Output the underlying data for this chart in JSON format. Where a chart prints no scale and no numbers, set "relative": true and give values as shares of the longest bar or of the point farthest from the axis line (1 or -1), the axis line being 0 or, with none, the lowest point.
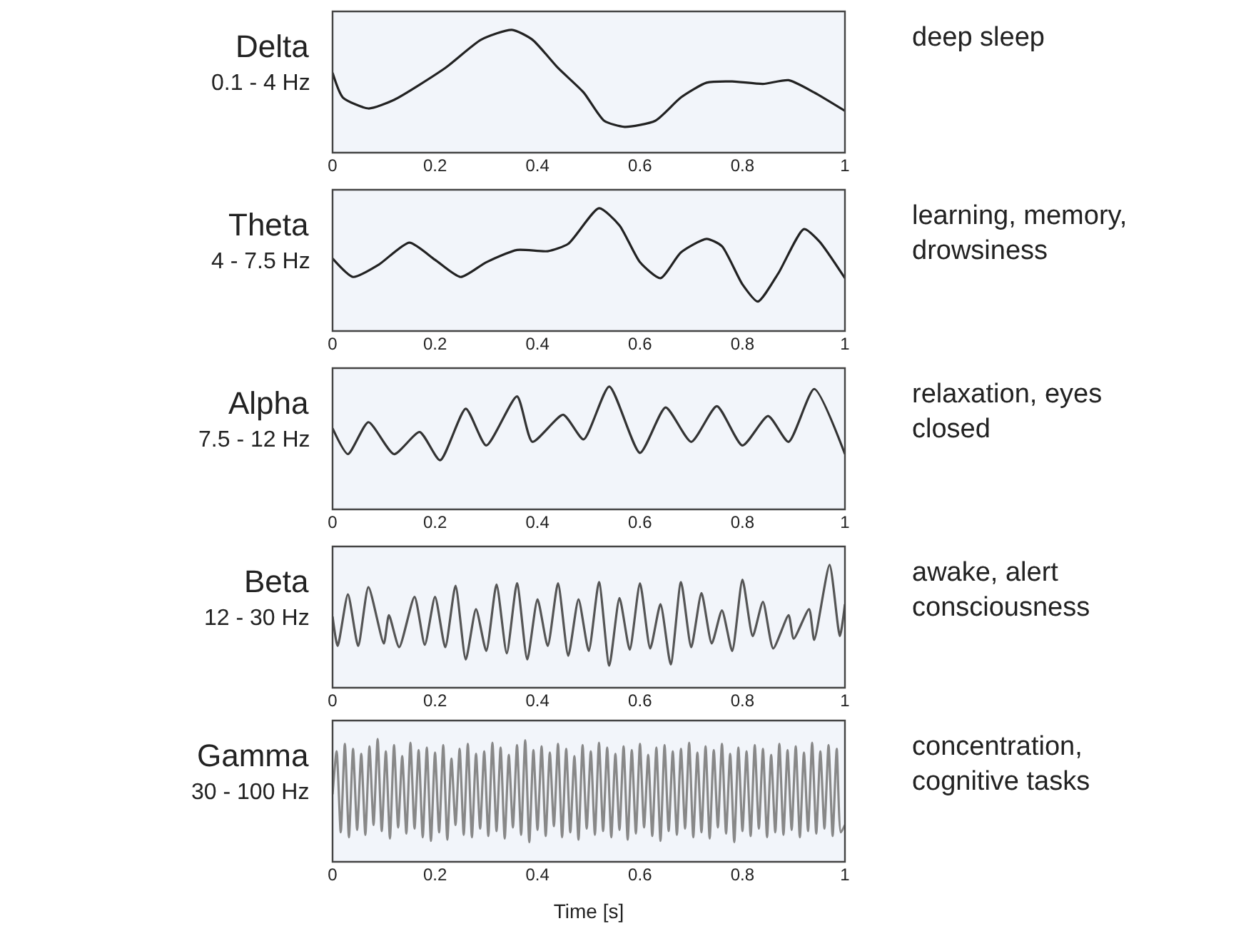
{
  "chart_data": [
    {
      "type": "line",
      "relative": true,
      "title": "Delta",
      "subtitle": "0.1 - 4 Hz",
      "annotations": [
        "deep sleep"
      ],
      "xlim": [
        0,
        1
      ],
      "xticks": [
        0,
        0.2,
        0.4,
        0.6,
        0.8,
        1
      ],
      "grid": false,
      "line_style": "solid",
      "x": [
        0,
        0.02,
        0.07,
        0.12,
        0.22,
        0.29,
        0.35,
        0.39,
        0.44,
        0.49,
        0.53,
        0.57,
        0.63,
        0.68,
        0.73,
        0.78,
        0.84,
        0.89,
        0.94,
        1
      ],
      "series": [
        {
          "color": "#222222",
          "values": [
            0.65,
            0.45,
            0.36,
            0.43,
            0.69,
            0.92,
            1,
            0.92,
            0.69,
            0.49,
            0.26,
            0.21,
            0.26,
            0.45,
            0.57,
            0.58,
            0.56,
            0.59,
            0.49,
            0.34
          ]
        }
      ]
    },
    {
      "type": "line",
      "relative": true,
      "title": "Theta",
      "subtitle": "4 - 7.5 Hz",
      "annotations": [
        "learning, memory, drowsiness"
      ],
      "xlim": [
        0,
        1
      ],
      "xticks": [
        0,
        0.2,
        0.4,
        0.6,
        0.8,
        1
      ],
      "grid": false,
      "line_style": "solid",
      "x": [
        0,
        0.04,
        0.09,
        0.15,
        0.2,
        0.25,
        0.3,
        0.36,
        0.42,
        0.46,
        0.52,
        0.56,
        0.6,
        0.64,
        0.68,
        0.73,
        0.76,
        0.8,
        0.83,
        0.87,
        0.92,
        0.95,
        1
      ],
      "series": [
        {
          "color": "#222222",
          "values": [
            0.59,
            0.44,
            0.54,
            0.72,
            0.58,
            0.44,
            0.56,
            0.66,
            0.65,
            0.71,
            1,
            0.86,
            0.56,
            0.43,
            0.64,
            0.75,
            0.69,
            0.38,
            0.24,
            0.47,
            0.83,
            0.73,
            0.43
          ]
        }
      ]
    },
    {
      "type": "line",
      "relative": true,
      "title": "Alpha",
      "subtitle": "7.5 - 12 Hz",
      "annotations": [
        "relaxation, eyes closed"
      ],
      "xlim": [
        0,
        1
      ],
      "xticks": [
        0,
        0.2,
        0.4,
        0.6,
        0.8,
        1
      ],
      "grid": false,
      "line_style": "solid",
      "x": [
        0,
        0.03,
        0.07,
        0.12,
        0.17,
        0.21,
        0.26,
        0.3,
        0.36,
        0.39,
        0.45,
        0.49,
        0.54,
        0.6,
        0.65,
        0.7,
        0.75,
        0.8,
        0.85,
        0.89,
        0.94,
        1
      ],
      "series": [
        {
          "color": "#333333",
          "values": [
            0.66,
            0.45,
            0.71,
            0.45,
            0.63,
            0.4,
            0.82,
            0.52,
            0.92,
            0.55,
            0.77,
            0.57,
            1,
            0.46,
            0.83,
            0.55,
            0.84,
            0.52,
            0.76,
            0.55,
            0.98,
            0.45
          ]
        }
      ]
    },
    {
      "type": "line",
      "relative": true,
      "title": "Beta",
      "subtitle": "12 - 30 Hz",
      "annotations": [
        "awake, alert consciousness"
      ],
      "xlim": [
        0,
        1
      ],
      "xticks": [
        0,
        0.2,
        0.4,
        0.6,
        0.8,
        1
      ],
      "grid": false,
      "line_style": "solid",
      "x": [
        0,
        0.01,
        0.03,
        0.05,
        0.07,
        0.1,
        0.11,
        0.13,
        0.16,
        0.18,
        0.2,
        0.22,
        0.24,
        0.26,
        0.28,
        0.3,
        0.32,
        0.34,
        0.36,
        0.38,
        0.4,
        0.42,
        0.44,
        0.46,
        0.48,
        0.5,
        0.52,
        0.54,
        0.56,
        0.58,
        0.6,
        0.62,
        0.64,
        0.66,
        0.68,
        0.7,
        0.72,
        0.74,
        0.76,
        0.78,
        0.8,
        0.82,
        0.84,
        0.86,
        0.89,
        0.9,
        0.93,
        0.94,
        0.97,
        0.99,
        1
      ],
      "series": [
        {
          "color": "#555555",
          "values": [
            0.58,
            0.34,
            0.76,
            0.34,
            0.82,
            0.36,
            0.59,
            0.33,
            0.74,
            0.35,
            0.74,
            0.33,
            0.83,
            0.23,
            0.64,
            0.3,
            0.84,
            0.28,
            0.85,
            0.23,
            0.72,
            0.34,
            0.85,
            0.26,
            0.72,
            0.3,
            0.86,
            0.18,
            0.73,
            0.31,
            0.85,
            0.32,
            0.68,
            0.19,
            0.86,
            0.33,
            0.77,
            0.36,
            0.63,
            0.3,
            0.88,
            0.42,
            0.7,
            0.32,
            0.59,
            0.4,
            0.64,
            0.39,
            1,
            0.42,
            0.68
          ]
        }
      ]
    },
    {
      "type": "line",
      "relative": true,
      "title": "Gamma",
      "subtitle": "30 - 100 Hz",
      "annotations": [
        "concentration, cognitive tasks"
      ],
      "xlabel": "Time [s]",
      "xlim": [
        0,
        1
      ],
      "xticks": [
        0,
        0.2,
        0.4,
        0.6,
        0.8,
        1
      ],
      "grid": false,
      "line_style": "solid",
      "x": [
        0,
        0.008,
        0.016,
        0.024,
        0.032,
        0.04,
        0.048,
        0.056,
        0.064,
        0.072,
        0.08,
        0.088,
        0.096,
        0.104,
        0.112,
        0.12,
        0.128,
        0.136,
        0.144,
        0.152,
        0.16,
        0.168,
        0.176,
        0.184,
        0.192,
        0.2,
        0.208,
        0.216,
        0.224,
        0.232,
        0.24,
        0.248,
        0.256,
        0.264,
        0.272,
        0.28,
        0.288,
        0.296,
        0.304,
        0.312,
        0.32,
        0.328,
        0.336,
        0.344,
        0.352,
        0.36,
        0.368,
        0.376,
        0.384,
        0.392,
        0.4,
        0.408,
        0.416,
        0.424,
        0.432,
        0.44,
        0.448,
        0.456,
        0.464,
        0.472,
        0.48,
        0.488,
        0.496,
        0.504,
        0.512,
        0.52,
        0.528,
        0.536,
        0.544,
        0.552,
        0.56,
        0.568,
        0.576,
        0.584,
        0.592,
        0.6,
        0.608,
        0.616,
        0.624,
        0.632,
        0.64,
        0.648,
        0.656,
        0.664,
        0.672,
        0.68,
        0.688,
        0.696,
        0.704,
        0.712,
        0.72,
        0.728,
        0.736,
        0.744,
        0.752,
        0.76,
        0.768,
        0.776,
        0.784,
        0.792,
        0.8,
        0.808,
        0.816,
        0.824,
        0.832,
        0.84,
        0.848,
        0.856,
        0.864,
        0.872,
        0.88,
        0.888,
        0.896,
        0.904,
        0.912,
        0.92,
        0.928,
        0.936,
        0.944,
        0.952,
        0.96,
        0.968,
        0.976,
        0.984,
        0.992,
        1
      ],
      "series": [
        {
          "color": "#888888",
          "values": [
            0.55,
            0.9,
            0.24,
            0.96,
            0.2,
            0.92,
            0.26,
            0.88,
            0.22,
            0.94,
            0.3,
            1,
            0.25,
            0.9,
            0.19,
            0.95,
            0.28,
            0.86,
            0.23,
            0.97,
            0.27,
            0.91,
            0.2,
            0.93,
            0.17,
            0.89,
            0.24,
            0.95,
            0.18,
            0.84,
            0.3,
            0.92,
            0.22,
            0.96,
            0.2,
            0.88,
            0.27,
            0.9,
            0.21,
            0.97,
            0.25,
            0.93,
            0.19,
            0.87,
            0.28,
            0.95,
            0.22,
            0.99,
            0.16,
            0.91,
            0.26,
            0.94,
            0.21,
            0.89,
            0.29,
            0.96,
            0.2,
            0.92,
            0.24,
            0.86,
            0.18,
            0.95,
            0.27,
            0.9,
            0.22,
            0.97,
            0.25,
            0.93,
            0.2,
            0.88,
            0.26,
            0.94,
            0.18,
            0.91,
            0.23,
            0.96,
            0.28,
            0.87,
            0.21,
            0.93,
            0.17,
            0.95,
            0.25,
            0.9,
            0.22,
            0.92,
            0.27,
            0.97,
            0.2,
            0.89,
            0.24,
            0.94,
            0.19,
            0.91,
            0.28,
            0.96,
            0.23,
            0.88,
            0.16,
            0.93,
            0.25,
            0.9,
            0.21,
            0.95,
            0.27,
            0.92,
            0.2,
            0.87,
            0.24,
            0.96,
            0.22,
            0.91,
            0.26,
            0.94,
            0.2,
            0.89,
            0.25,
            0.97,
            0.23,
            0.9,
            0.27,
            0.95,
            0.21,
            0.92,
            0.24,
            0.3
          ]
        }
      ]
    }
  ]
}
